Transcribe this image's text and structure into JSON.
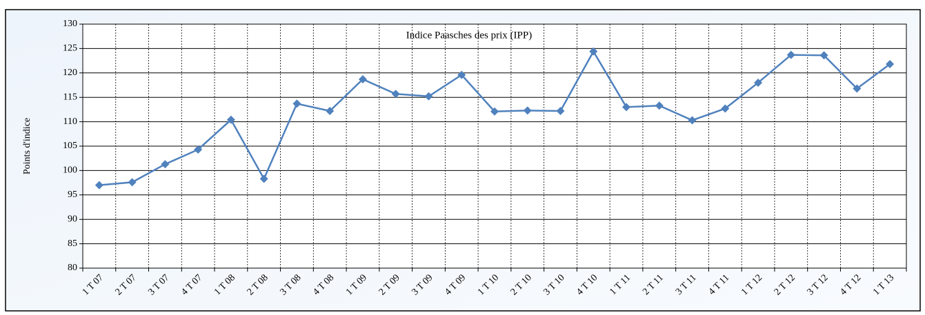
{
  "chart_data": {
    "type": "line",
    "title": "Indice Paasches des prix (IPP)",
    "y_label": "Points d'indice",
    "categories": [
      "1 T 07",
      "2 T 07",
      "3 T 07",
      "4 T 07",
      "1 T 08",
      "2 T 08",
      "3 T 08",
      "4 T 08",
      "1 T 09",
      "2 T 09",
      "3 T 09",
      "4 T 09",
      "1 T 10",
      "2 T 10",
      "3 T 10",
      "4 T 10",
      "1 T 11",
      "2 T 11",
      "3 T 11",
      "4 T 11",
      "1 T 12",
      "2 T 12",
      "3 T 12",
      "4 T 12",
      "1 T 13"
    ],
    "series": [
      {
        "name": "IPP",
        "color": "#4f81bd",
        "values": [
          97.0,
          97.6,
          101.3,
          104.3,
          110.4,
          98.3,
          113.7,
          112.2,
          118.7,
          115.7,
          115.2,
          119.6,
          112.1,
          112.3,
          112.2,
          124.4,
          113.0,
          113.3,
          110.3,
          112.7,
          118.0,
          123.7,
          123.6,
          116.8,
          121.8
        ]
      }
    ],
    "ylim": [
      80,
      130
    ],
    "yticks": [
      80,
      85,
      90,
      95,
      100,
      105,
      110,
      115,
      120,
      125,
      130
    ],
    "grid": true
  }
}
